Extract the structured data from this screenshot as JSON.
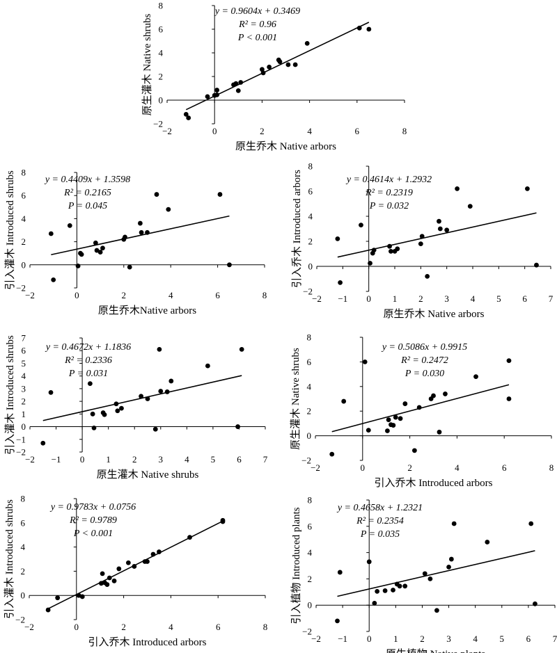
{
  "chart_data": [
    {
      "type": "scatter",
      "xlabel": "原生乔木 Native arbors",
      "ylabel": "原生灌木 Native shrubs",
      "xlim": [
        -2,
        8
      ],
      "ylim": [
        -2,
        8
      ],
      "xticks": [
        -2,
        0,
        2,
        4,
        6,
        8
      ],
      "yticks": [
        -2,
        0,
        2,
        4,
        6,
        8
      ],
      "equation": "y = 0.9604x + 0.3469",
      "slope": 0.9604,
      "intercept": 0.3469,
      "r2": "R² = 0.96",
      "p": "P < 0.001",
      "points": [
        [
          -1.2,
          -1.2
        ],
        [
          -1.1,
          -1.5
        ],
        [
          -0.3,
          0.3
        ],
        [
          0.0,
          0.4
        ],
        [
          0.1,
          0.45
        ],
        [
          0.1,
          0.85
        ],
        [
          0.8,
          1.3
        ],
        [
          0.9,
          1.4
        ],
        [
          1.0,
          0.8
        ],
        [
          1.1,
          1.5
        ],
        [
          2.0,
          2.6
        ],
        [
          2.05,
          2.3
        ],
        [
          2.3,
          2.8
        ],
        [
          2.7,
          3.4
        ],
        [
          2.75,
          3.25
        ],
        [
          3.1,
          3.0
        ],
        [
          3.4,
          3.0
        ],
        [
          3.9,
          4.8
        ],
        [
          6.1,
          6.1
        ],
        [
          6.5,
          6.0
        ]
      ]
    },
    {
      "type": "scatter",
      "xlabel": "原生乔木Native arbors",
      "ylabel": "引入灌木 Introduced shrubs",
      "xlim": [
        -2,
        8
      ],
      "ylim": [
        -2,
        8
      ],
      "xticks": [
        -2,
        0,
        2,
        4,
        6,
        8
      ],
      "yticks": [
        -2,
        0,
        2,
        4,
        6,
        8
      ],
      "equation": "y = 0.4409x + 1.3598",
      "slope": 0.4409,
      "intercept": 1.3598,
      "r2": "R² = 0.2165",
      "p": "P = 0.045",
      "points": [
        [
          -1.1,
          2.7
        ],
        [
          -1.0,
          -1.3
        ],
        [
          -0.3,
          3.4
        ],
        [
          0.05,
          -0.1
        ],
        [
          0.15,
          1.0
        ],
        [
          0.2,
          0.9
        ],
        [
          0.8,
          1.9
        ],
        [
          0.85,
          1.25
        ],
        [
          1.0,
          1.1
        ],
        [
          1.1,
          1.45
        ],
        [
          2.0,
          2.2
        ],
        [
          2.05,
          2.4
        ],
        [
          2.25,
          -0.2
        ],
        [
          2.7,
          3.6
        ],
        [
          2.75,
          2.8
        ],
        [
          3.0,
          2.8
        ],
        [
          3.4,
          6.1
        ],
        [
          3.9,
          4.8
        ],
        [
          6.1,
          6.1
        ],
        [
          6.5,
          0.0
        ]
      ]
    },
    {
      "type": "scatter",
      "xlabel": "原生乔木 Native arbors",
      "ylabel": "引入乔木 Introduced arbors",
      "xlim": [
        -2,
        7
      ],
      "ylim": [
        -2,
        8
      ],
      "xticks": [
        -2,
        -1,
        0,
        1,
        2,
        3,
        4,
        5,
        6,
        7
      ],
      "yticks": [
        -2,
        0,
        2,
        4,
        6,
        8
      ],
      "equation": "y = 0.4614x + 1.2932",
      "slope": 0.4614,
      "intercept": 1.2932,
      "r2": "R² = 0.2319",
      "p": "P = 0.032",
      "points": [
        [
          -1.2,
          2.2
        ],
        [
          -1.1,
          -1.3
        ],
        [
          -0.3,
          3.3
        ],
        [
          0.05,
          0.25
        ],
        [
          0.15,
          1.05
        ],
        [
          0.2,
          1.3
        ],
        [
          0.8,
          1.6
        ],
        [
          0.85,
          1.2
        ],
        [
          1.0,
          1.2
        ],
        [
          1.1,
          1.4
        ],
        [
          2.0,
          1.8
        ],
        [
          2.05,
          2.4
        ],
        [
          2.25,
          -0.8
        ],
        [
          2.7,
          3.6
        ],
        [
          2.75,
          3.0
        ],
        [
          3.0,
          2.9
        ],
        [
          3.4,
          6.2
        ],
        [
          3.9,
          4.8
        ],
        [
          6.1,
          6.2
        ],
        [
          6.45,
          0.1
        ]
      ]
    },
    {
      "type": "scatter",
      "xlabel": "原生灌木 Native shrubs",
      "ylabel": "引入灌木 Introduced shrubs",
      "xlim": [
        -2,
        7
      ],
      "ylim": [
        -2,
        7
      ],
      "xticks": [
        -2,
        -1,
        0,
        1,
        2,
        3,
        4,
        5,
        6,
        7
      ],
      "yticks": [
        -2,
        -1,
        0,
        1,
        2,
        3,
        4,
        5,
        6,
        7
      ],
      "equation": "y = 0.4672x + 1.1836",
      "slope": 0.4672,
      "intercept": 1.1836,
      "r2": "R² = 0.2336",
      "p": "P = 0.031",
      "points": [
        [
          -1.5,
          -1.3
        ],
        [
          -1.2,
          2.7
        ],
        [
          0.3,
          3.4
        ],
        [
          0.4,
          1.0
        ],
        [
          0.45,
          -0.1
        ],
        [
          0.8,
          1.1
        ],
        [
          0.85,
          0.95
        ],
        [
          1.3,
          1.8
        ],
        [
          1.35,
          1.25
        ],
        [
          1.5,
          1.45
        ],
        [
          2.25,
          2.4
        ],
        [
          2.5,
          2.2
        ],
        [
          2.8,
          -0.2
        ],
        [
          2.95,
          6.1
        ],
        [
          3.0,
          2.8
        ],
        [
          3.25,
          2.75
        ],
        [
          3.4,
          3.6
        ],
        [
          4.8,
          4.8
        ],
        [
          5.95,
          0.0
        ],
        [
          6.1,
          6.1
        ]
      ]
    },
    {
      "type": "scatter",
      "xlabel": "引入乔木 Introduced arbors",
      "ylabel": "原生灌木 Native shrubs",
      "xlim": [
        -2,
        8
      ],
      "ylim": [
        -2,
        8
      ],
      "xticks": [
        -2,
        0,
        2,
        4,
        6,
        8
      ],
      "yticks": [
        -2,
        0,
        2,
        4,
        6,
        8
      ],
      "equation": "y = 0.5086x + 0.9915",
      "slope": 0.5086,
      "intercept": 0.9915,
      "r2": "R² = 0.2472",
      "p": "P = 0.030",
      "points": [
        [
          -1.3,
          -1.5
        ],
        [
          -0.8,
          2.8
        ],
        [
          0.1,
          6.0
        ],
        [
          0.25,
          0.45
        ],
        [
          1.05,
          0.4
        ],
        [
          1.1,
          1.3
        ],
        [
          1.2,
          0.9
        ],
        [
          1.3,
          0.85
        ],
        [
          1.4,
          1.5
        ],
        [
          1.6,
          1.4
        ],
        [
          1.8,
          2.6
        ],
        [
          2.2,
          -1.2
        ],
        [
          2.4,
          2.3
        ],
        [
          2.9,
          3.0
        ],
        [
          3.0,
          3.25
        ],
        [
          3.25,
          0.3
        ],
        [
          3.5,
          3.4
        ],
        [
          4.8,
          4.8
        ],
        [
          6.2,
          6.1
        ],
        [
          6.2,
          3.0
        ]
      ]
    },
    {
      "type": "scatter",
      "xlabel": "引入乔木 Introduced arbors",
      "ylabel": "引入灌木 Introduced shrubs",
      "xlim": [
        -2,
        8
      ],
      "ylim": [
        -2,
        8
      ],
      "xticks": [
        -2,
        0,
        2,
        4,
        6,
        8
      ],
      "yticks": [
        -2,
        0,
        2,
        4,
        6,
        8
      ],
      "equation": "y = 0.9783x + 0.0756",
      "slope": 0.9783,
      "intercept": 0.0756,
      "r2": "R² = 0.9789",
      "p": "P < 0.001",
      "points": [
        [
          -1.2,
          -1.2
        ],
        [
          -0.8,
          -0.2
        ],
        [
          0.1,
          0.0
        ],
        [
          0.25,
          -0.1
        ],
        [
          1.05,
          1.0
        ],
        [
          1.1,
          1.8
        ],
        [
          1.2,
          1.05
        ],
        [
          1.3,
          0.9
        ],
        [
          1.4,
          1.45
        ],
        [
          1.6,
          1.2
        ],
        [
          1.8,
          2.2
        ],
        [
          2.2,
          2.7
        ],
        [
          2.45,
          2.4
        ],
        [
          2.9,
          2.8
        ],
        [
          3.0,
          2.8
        ],
        [
          3.25,
          3.4
        ],
        [
          3.5,
          3.6
        ],
        [
          4.8,
          4.8
        ],
        [
          6.2,
          6.2
        ],
        [
          6.2,
          6.1
        ]
      ]
    },
    {
      "type": "scatter",
      "xlabel": "原生植物 Native plants",
      "ylabel": "引入植物 Introduced plants",
      "xlim": [
        -2,
        7
      ],
      "ylim": [
        -2,
        8
      ],
      "xticks": [
        -2,
        -1,
        0,
        1,
        2,
        3,
        4,
        5,
        6,
        7
      ],
      "yticks": [
        -2,
        0,
        2,
        4,
        6,
        8
      ],
      "equation": "y = 0.4658x + 1.2321",
      "slope": 0.4658,
      "intercept": 1.2321,
      "r2": "R² = 0.2354",
      "p": "P = 0.035",
      "points": [
        [
          -1.2,
          -1.2
        ],
        [
          -1.1,
          2.5
        ],
        [
          0.0,
          3.3
        ],
        [
          0.2,
          0.15
        ],
        [
          0.3,
          1.05
        ],
        [
          0.6,
          1.1
        ],
        [
          0.9,
          1.15
        ],
        [
          1.05,
          1.6
        ],
        [
          1.15,
          1.45
        ],
        [
          1.35,
          1.45
        ],
        [
          2.1,
          2.4
        ],
        [
          2.3,
          2.0
        ],
        [
          2.55,
          -0.4
        ],
        [
          3.0,
          2.9
        ],
        [
          3.1,
          3.5
        ],
        [
          3.2,
          6.2
        ],
        [
          4.45,
          4.8
        ],
        [
          6.1,
          6.2
        ],
        [
          6.25,
          0.1
        ]
      ]
    }
  ]
}
